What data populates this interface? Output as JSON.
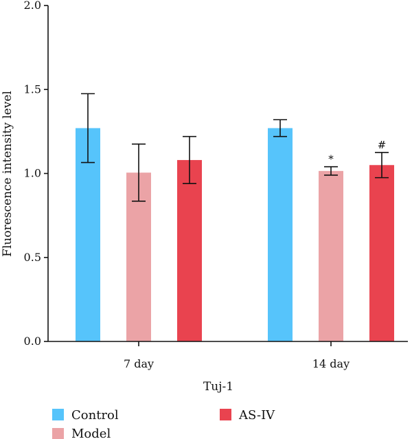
{
  "chart_data": {
    "type": "bar",
    "title": "",
    "xlabel": "Tuj-1",
    "ylabel": "Fluorescence intensity level",
    "ylim": [
      0,
      2.0
    ],
    "yticks": [
      "0.0",
      "0.5",
      "1.0",
      "1.5",
      "2.0"
    ],
    "ytick_values": [
      0,
      0.5,
      1.0,
      1.5,
      2.0
    ],
    "categories": [
      "7 day",
      "14 day"
    ],
    "grid": false,
    "legend_placement": "bottom",
    "series": [
      {
        "name": "Control",
        "color": "#56C4FB",
        "values": [
          1.27,
          1.27
        ],
        "errors": [
          0.205,
          0.05
        ],
        "annotations": [
          "",
          ""
        ]
      },
      {
        "name": "Model",
        "color": "#EBA3A6",
        "values": [
          1.005,
          1.015
        ],
        "errors": [
          0.17,
          0.025
        ],
        "annotations": [
          "",
          "*"
        ]
      },
      {
        "name": "AS-IV",
        "color": "#E9434F",
        "values": [
          1.08,
          1.05
        ],
        "errors": [
          0.14,
          0.075
        ],
        "annotations": [
          "",
          "#"
        ]
      }
    ]
  }
}
